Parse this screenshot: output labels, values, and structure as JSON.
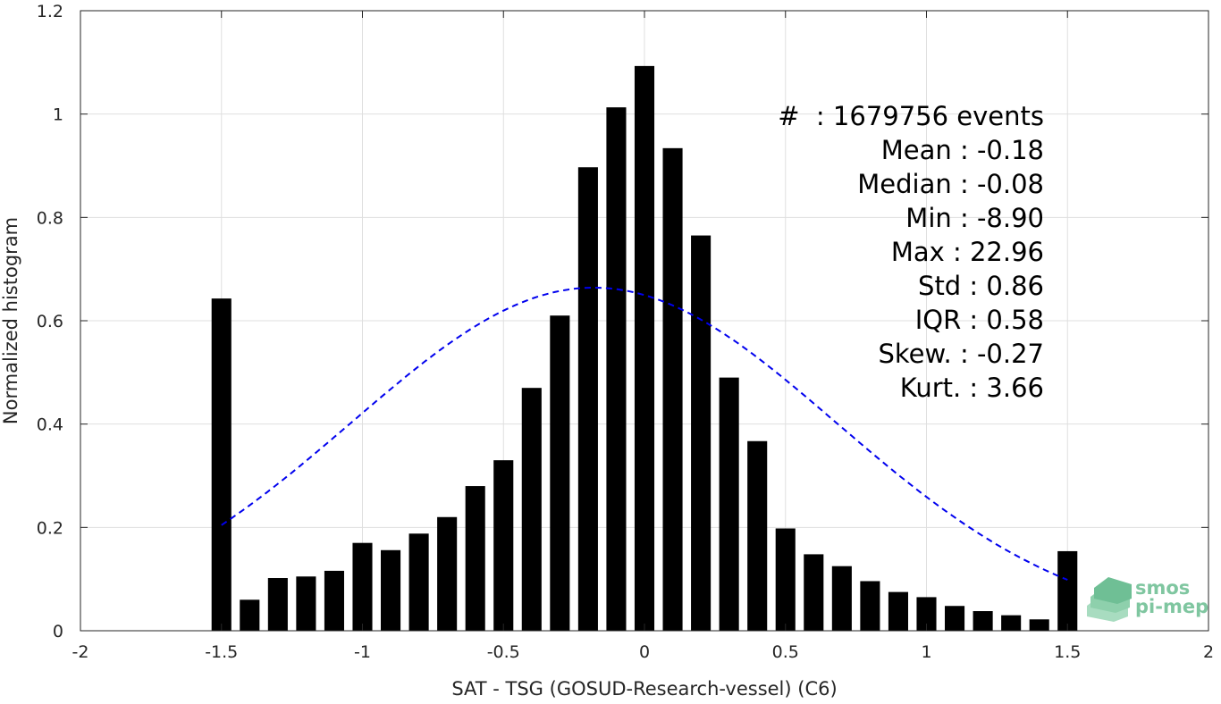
{
  "chart_data": {
    "type": "bar",
    "xlabel": "SAT - TSG (GOSUD-Research-vessel) (C6)",
    "ylabel": "Normalized histogram",
    "xlim": [
      -2,
      2
    ],
    "ylim": [
      0,
      1.2
    ],
    "xticks": [
      -2,
      -1.5,
      -1,
      -0.5,
      0,
      0.5,
      1,
      1.5,
      2
    ],
    "xtick_labels": [
      "-2",
      "-1.5",
      "-1",
      "-0.5",
      "0",
      "0.5",
      "1",
      "1.5",
      "2"
    ],
    "yticks": [
      0,
      0.2,
      0.4,
      0.6,
      0.8,
      1,
      1.2
    ],
    "ytick_labels": [
      "0",
      "0.2",
      "0.4",
      "0.6",
      "0.8",
      "1",
      "1.2"
    ],
    "grid": true,
    "bar_color": "#000000",
    "bars": {
      "x": [
        -1.5,
        -1.4,
        -1.3,
        -1.2,
        -1.1,
        -1.0,
        -0.9,
        -0.8,
        -0.7,
        -0.6,
        -0.5,
        -0.4,
        -0.3,
        -0.2,
        -0.1,
        0.0,
        0.1,
        0.2,
        0.3,
        0.4,
        0.5,
        0.6,
        0.7,
        0.8,
        0.9,
        1.0,
        1.1,
        1.2,
        1.3,
        1.4,
        1.5
      ],
      "values": [
        0.643,
        0.06,
        0.102,
        0.105,
        0.116,
        0.17,
        0.156,
        0.188,
        0.22,
        0.28,
        0.33,
        0.47,
        0.61,
        0.897,
        1.013,
        1.093,
        0.934,
        0.765,
        0.49,
        0.367,
        0.198,
        0.148,
        0.125,
        0.096,
        0.075,
        0.065,
        0.048,
        0.038,
        0.03,
        0.022,
        0.154
      ],
      "width": 0.07
    },
    "fit_curve": {
      "style": "dashed",
      "color": "#0000ee",
      "mean": -0.18,
      "std": 0.86,
      "peak": 0.664,
      "x_range": [
        -1.5,
        1.5
      ]
    },
    "annotations": [
      "#  : 1679756 events",
      "Mean : -0.18",
      "Median : -0.08",
      "Min : -8.90",
      "Max : 22.96",
      "Std : 0.86",
      "IQR : 0.58",
      "Skew. : -0.27",
      "Kurt. : 3.66"
    ]
  },
  "logo": {
    "line1": "smos",
    "line2": "pi-mep",
    "color": "#7fc6a0"
  }
}
